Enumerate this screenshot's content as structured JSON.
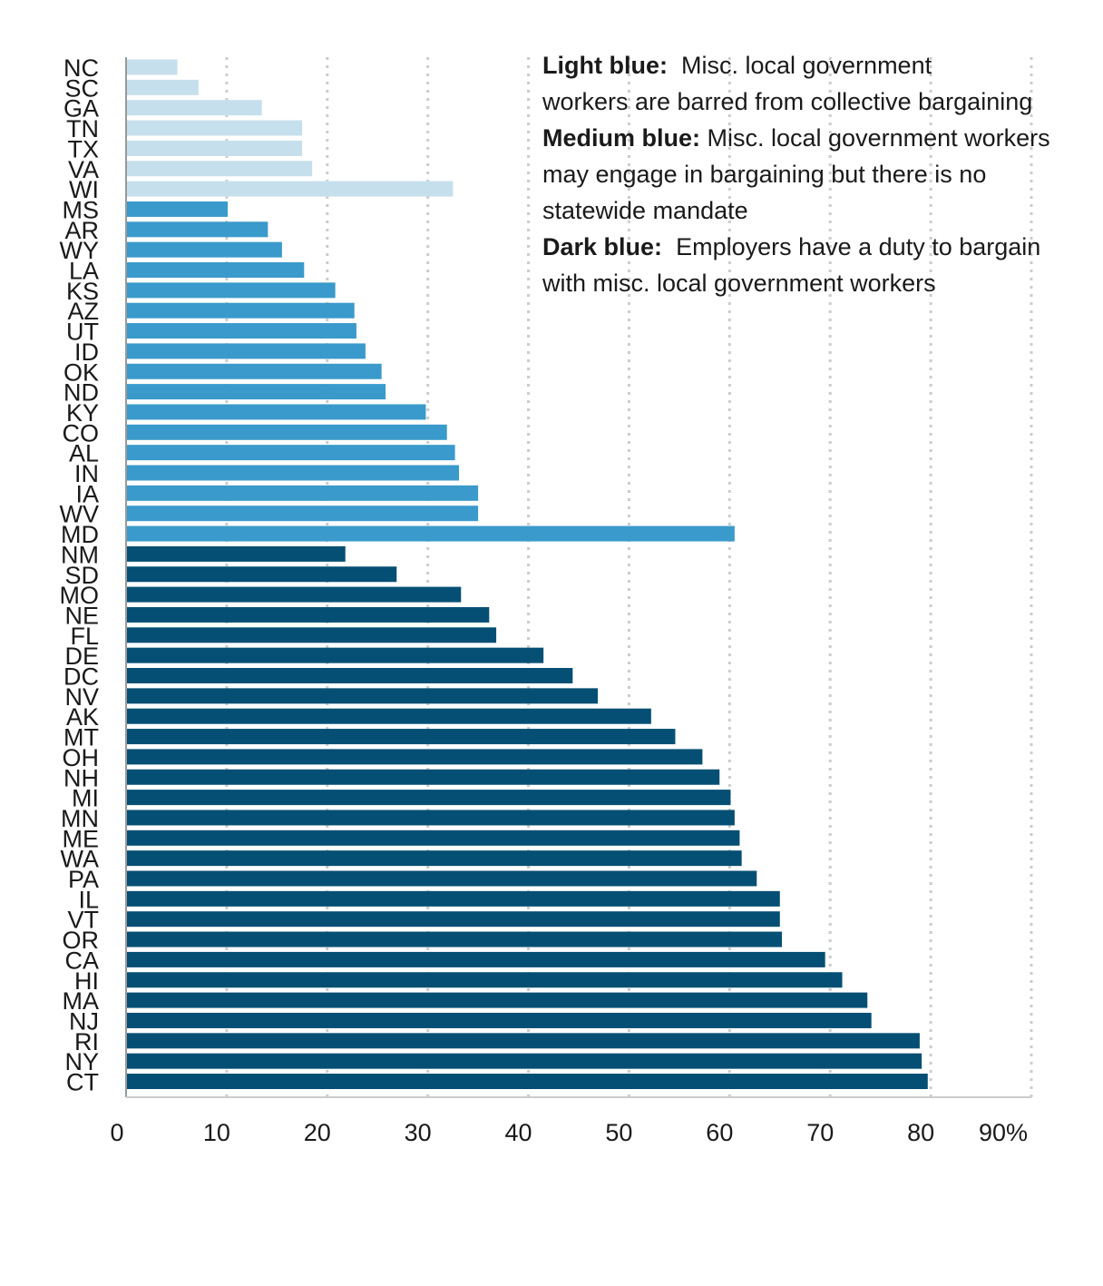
{
  "colors": {
    "light": "#c6dfec",
    "medium": "#3a9acb",
    "dark": "#054f74",
    "grid": "#cccccc",
    "axis": "#999999",
    "text": "#1a1a1a"
  },
  "legend": {
    "light_label": "Light blue:",
    "light_text_1": "Misc. local government",
    "light_text_2": "workers are barred from collective bargaining",
    "medium_label": "Medium blue:",
    "medium_text_1": "Misc. local government workers",
    "medium_text_2": "may engage in bargaining but there is no",
    "medium_text_3": "statewide mandate",
    "dark_label": "Dark blue:",
    "dark_text_1": "Employers have a duty to bargain",
    "dark_text_2": "with misc. local  government workers"
  },
  "chart_data": {
    "type": "bar",
    "orientation": "horizontal",
    "xlim": [
      0,
      90
    ],
    "x_ticks": [
      "0",
      "10",
      "20",
      "30",
      "40",
      "50",
      "60",
      "70",
      "80",
      "90%"
    ],
    "grid": "vertical dotted",
    "categories": [
      "NC",
      "SC",
      "GA",
      "TN",
      "TX",
      "VA",
      "WI",
      "MS",
      "AR",
      "WY",
      "LA",
      "KS",
      "AZ",
      "UT",
      "ID",
      "OK",
      "ND",
      "KY",
      "CO",
      "AL",
      "IN",
      "IA",
      "WV",
      "MD",
      "NM",
      "SD",
      "MO",
      "NE",
      "FL",
      "DE",
      "DC",
      "NV",
      "AK",
      "MT",
      "OH",
      "NH",
      "MI",
      "MN",
      "ME",
      "WA",
      "PA",
      "IL",
      "VT",
      "OR",
      "CA",
      "HI",
      "MA",
      "NJ",
      "RI",
      "NY",
      "CT"
    ],
    "values": [
      5.1,
      7.2,
      13.5,
      17.5,
      17.5,
      18.5,
      32.5,
      10.1,
      14.1,
      15.5,
      17.7,
      20.8,
      22.7,
      22.9,
      23.8,
      25.4,
      25.8,
      29.8,
      31.9,
      32.7,
      33.1,
      35.0,
      35.0,
      60.5,
      21.8,
      26.9,
      33.3,
      36.1,
      36.8,
      41.5,
      44.4,
      46.9,
      52.2,
      54.6,
      57.3,
      59.0,
      60.1,
      60.5,
      61.0,
      61.2,
      62.7,
      65.0,
      65.0,
      65.2,
      69.5,
      71.2,
      73.7,
      74.1,
      78.9,
      79.1,
      79.7
    ],
    "groups": [
      "light",
      "light",
      "light",
      "light",
      "light",
      "light",
      "light",
      "medium",
      "medium",
      "medium",
      "medium",
      "medium",
      "medium",
      "medium",
      "medium",
      "medium",
      "medium",
      "medium",
      "medium",
      "medium",
      "medium",
      "medium",
      "medium",
      "medium",
      "dark",
      "dark",
      "dark",
      "dark",
      "dark",
      "dark",
      "dark",
      "dark",
      "dark",
      "dark",
      "dark",
      "dark",
      "dark",
      "dark",
      "dark",
      "dark",
      "dark",
      "dark",
      "dark",
      "dark",
      "dark",
      "dark",
      "dark",
      "dark",
      "dark",
      "dark",
      "dark"
    ]
  }
}
